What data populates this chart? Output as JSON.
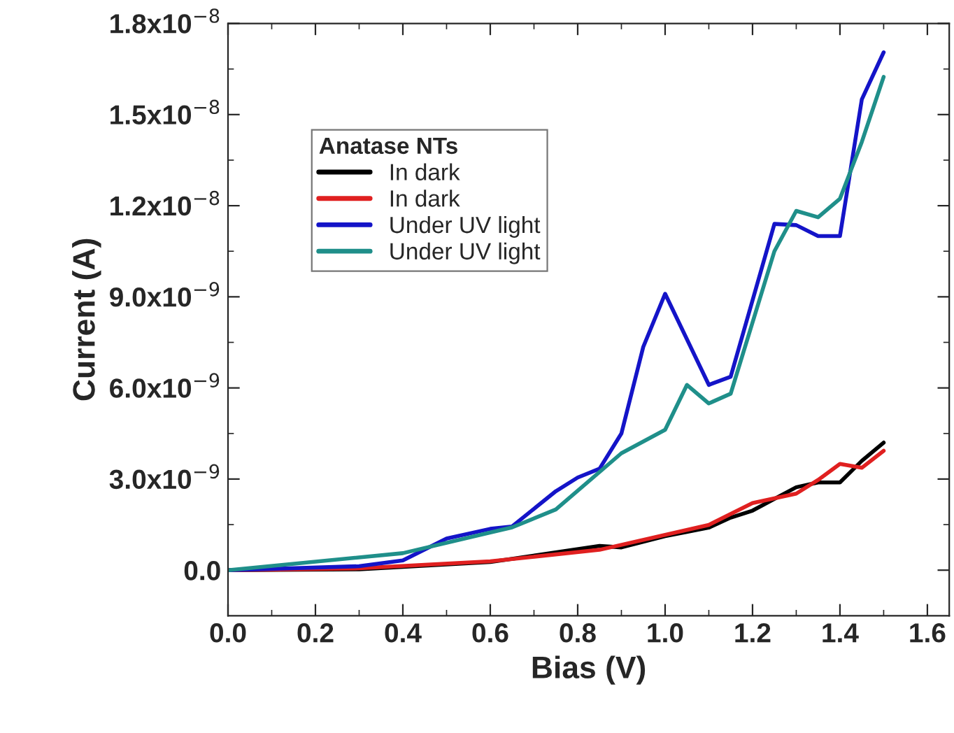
{
  "chart_data": {
    "type": "line",
    "xlabel": "Bias (V)",
    "ylabel": "Current (A)",
    "legend_title": "Anatase NTs",
    "legend": "top left",
    "grid": false,
    "line_style": "solid",
    "xlim": [
      0.0,
      1.65
    ],
    "ylim": [
      -1.5e-09,
      1.8e-08
    ],
    "xticks": [
      {
        "value": 0.0,
        "label": "0.0"
      },
      {
        "value": 0.2,
        "label": "0.2"
      },
      {
        "value": 0.4,
        "label": "0.4"
      },
      {
        "value": 0.6,
        "label": "0.6"
      },
      {
        "value": 0.8,
        "label": "0.8"
      },
      {
        "value": 1.0,
        "label": "1.0"
      },
      {
        "value": 1.2,
        "label": "1.2"
      },
      {
        "value": 1.4,
        "label": "1.4"
      },
      {
        "value": 1.6,
        "label": "1.6"
      }
    ],
    "yticks": [
      {
        "value": 0.0,
        "label": "0.0"
      },
      {
        "value": 3e-09,
        "label": "3.0x10$^{−9}$"
      },
      {
        "value": 6e-09,
        "label": "6.0x10$^{−9}$"
      },
      {
        "value": 9e-09,
        "label": "9.0x10$^{−9}$"
      },
      {
        "value": 1.2e-08,
        "label": "1.2x10$^{−8}$"
      },
      {
        "value": 1.5e-08,
        "label": "1.5x10$^{−8}$"
      },
      {
        "value": 1.8e-08,
        "label": "1.8x10$^{−8}$"
      }
    ],
    "series": [
      {
        "name": "In dark",
        "color": "#000000",
        "x": [
          0.0,
          0.3,
          0.6,
          0.65,
          0.85,
          0.9,
          1.0,
          1.1,
          1.15,
          1.2,
          1.3,
          1.35,
          1.4,
          1.45,
          1.5
        ],
        "values": [
          0.0,
          3e-11,
          2.7e-10,
          3.7e-10,
          8e-10,
          7.5e-10,
          1.12e-09,
          1.4e-09,
          1.73e-09,
          1.96e-09,
          2.73e-09,
          2.89e-09,
          2.89e-09,
          3.6e-09,
          4.2e-09
        ]
      },
      {
        "name": "In dark",
        "color": "#e02020",
        "x": [
          0.0,
          0.3,
          0.6,
          0.85,
          1.1,
          1.2,
          1.3,
          1.35,
          1.4,
          1.45,
          1.5
        ],
        "values": [
          0.0,
          6e-11,
          2.9e-10,
          6.7e-10,
          1.49e-09,
          2.21e-09,
          2.52e-09,
          2.97e-09,
          3.5e-09,
          3.37e-09,
          3.93e-09
        ]
      },
      {
        "name": "Under UV light",
        "color": "#1414c8",
        "x": [
          0.0,
          0.3,
          0.4,
          0.5,
          0.6,
          0.65,
          0.75,
          0.8,
          0.85,
          0.9,
          0.95,
          1.0,
          1.1,
          1.15,
          1.25,
          1.3,
          1.35,
          1.4,
          1.45,
          1.5
        ],
        "values": [
          0.0,
          1.3e-10,
          3.2e-10,
          1.04e-09,
          1.36e-09,
          1.44e-09,
          2.6e-09,
          3.05e-09,
          3.34e-09,
          4.5e-09,
          7.35e-09,
          9.1e-09,
          6.1e-09,
          6.37e-09,
          1.14e-08,
          1.136e-08,
          1.1e-08,
          1.1e-08,
          1.55e-08,
          1.705e-08
        ]
      },
      {
        "name": "Under UV light",
        "color": "#1f8f8a",
        "x": [
          0.0,
          0.4,
          0.65,
          0.75,
          0.9,
          1.0,
          1.05,
          1.1,
          1.15,
          1.25,
          1.3,
          1.35,
          1.4,
          1.45,
          1.5
        ],
        "values": [
          0.0,
          5.6e-10,
          1.41e-09,
          2e-09,
          3.85e-09,
          4.62e-09,
          6.1e-09,
          5.49e-09,
          5.81e-09,
          1.05e-08,
          1.183e-08,
          1.162e-08,
          1.223e-08,
          1.41e-08,
          1.624e-08
        ]
      }
    ]
  }
}
